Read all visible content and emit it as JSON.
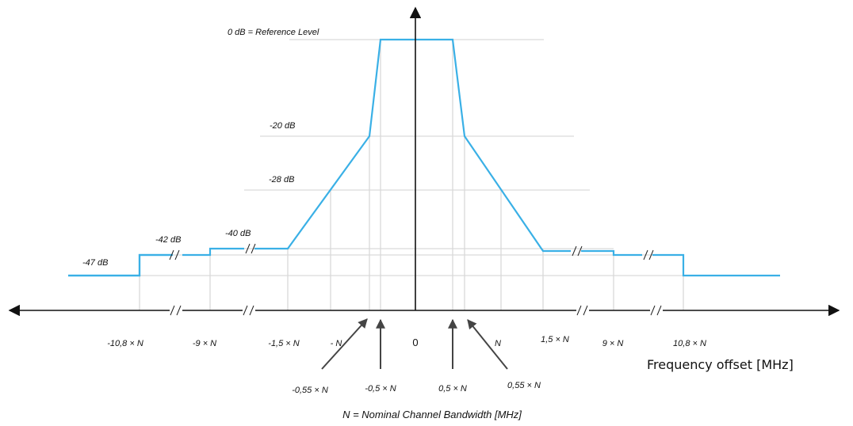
{
  "levels": {
    "ref": "0 dB = Reference Level",
    "l20": "-20 dB",
    "l28": "-28 dB",
    "l40": "-40 dB",
    "l42": "-42 dB",
    "l47": "-47 dB"
  },
  "ticks": {
    "m108": "-10,8 × N",
    "m9": "-9 × N",
    "m15": "-1,5 × N",
    "mN": "- N",
    "zero": "0",
    "pN": "N",
    "p15": "1,5 × N",
    "p9": "9 × N",
    "p108": "10,8 × N"
  },
  "pointers": {
    "m055": "-0,55 × N",
    "m05": "-0,5 × N",
    "p05": "0,5 × N",
    "p055": "0,55 × N"
  },
  "axis_title": "Frequency offset [MHz]",
  "footnote": "N = Nominal Channel Bandwidth [MHz]",
  "colors": {
    "mask": "#3ab0e6",
    "grid": "#d9d9d9",
    "axis": "#111111"
  }
}
